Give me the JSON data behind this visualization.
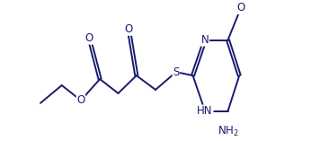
{
  "bg_color": "#ffffff",
  "bond_color": "#1a1a6e",
  "atom_label_color": "#1a1a6e",
  "line_width": 1.4,
  "font_size": 8.5,
  "fig_width": 3.46,
  "fig_height": 1.57,
  "dpi": 100,
  "xlim": [
    0,
    17
  ],
  "ylim": [
    -4.5,
    4.5
  ]
}
